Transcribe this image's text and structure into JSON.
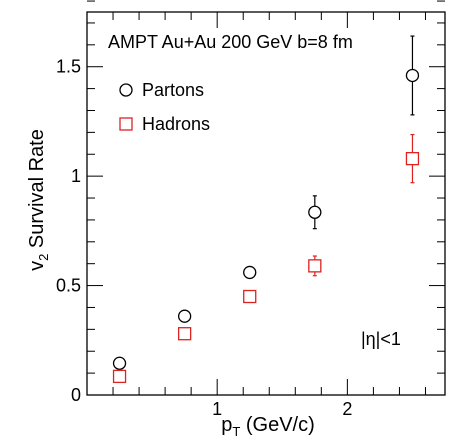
{
  "chart_data": {
    "type": "scatter",
    "annotation": "AMPT Au+Au 200 GeV b=8 fm",
    "cut_label": "|η|<1",
    "xlabel": {
      "main": "p",
      "sub": "T",
      "unit": " (GeV/c)"
    },
    "ylabel": {
      "main": "v",
      "sub": "2",
      "rest": " Survival Rate"
    },
    "xlim": [
      0.0,
      2.75
    ],
    "ylim": [
      0.0,
      1.75
    ],
    "x_ticks": [
      1,
      2
    ],
    "x_tick_labels": [
      "1",
      "2"
    ],
    "y_ticks": [
      0,
      0.5,
      1,
      1.5
    ],
    "y_tick_labels": [
      "0",
      "0.5",
      "1",
      "1.5"
    ],
    "grid": false,
    "legend_position": "top-left",
    "series": [
      {
        "name": "Partons",
        "marker": "circle",
        "color": "#000000",
        "x": [
          0.25,
          0.75,
          1.25,
          1.75,
          2.5
        ],
        "y": [
          0.145,
          0.36,
          0.56,
          0.835,
          1.46
        ],
        "err": [
          0.0,
          0.0,
          0.0,
          0.075,
          0.18
        ]
      },
      {
        "name": "Hadrons",
        "marker": "square",
        "color": "#dd2222",
        "x": [
          0.25,
          0.75,
          1.25,
          1.75,
          2.5
        ],
        "y": [
          0.085,
          0.28,
          0.45,
          0.59,
          1.08
        ],
        "err": [
          0.0,
          0.0,
          0.0,
          0.045,
          0.11
        ]
      }
    ]
  }
}
